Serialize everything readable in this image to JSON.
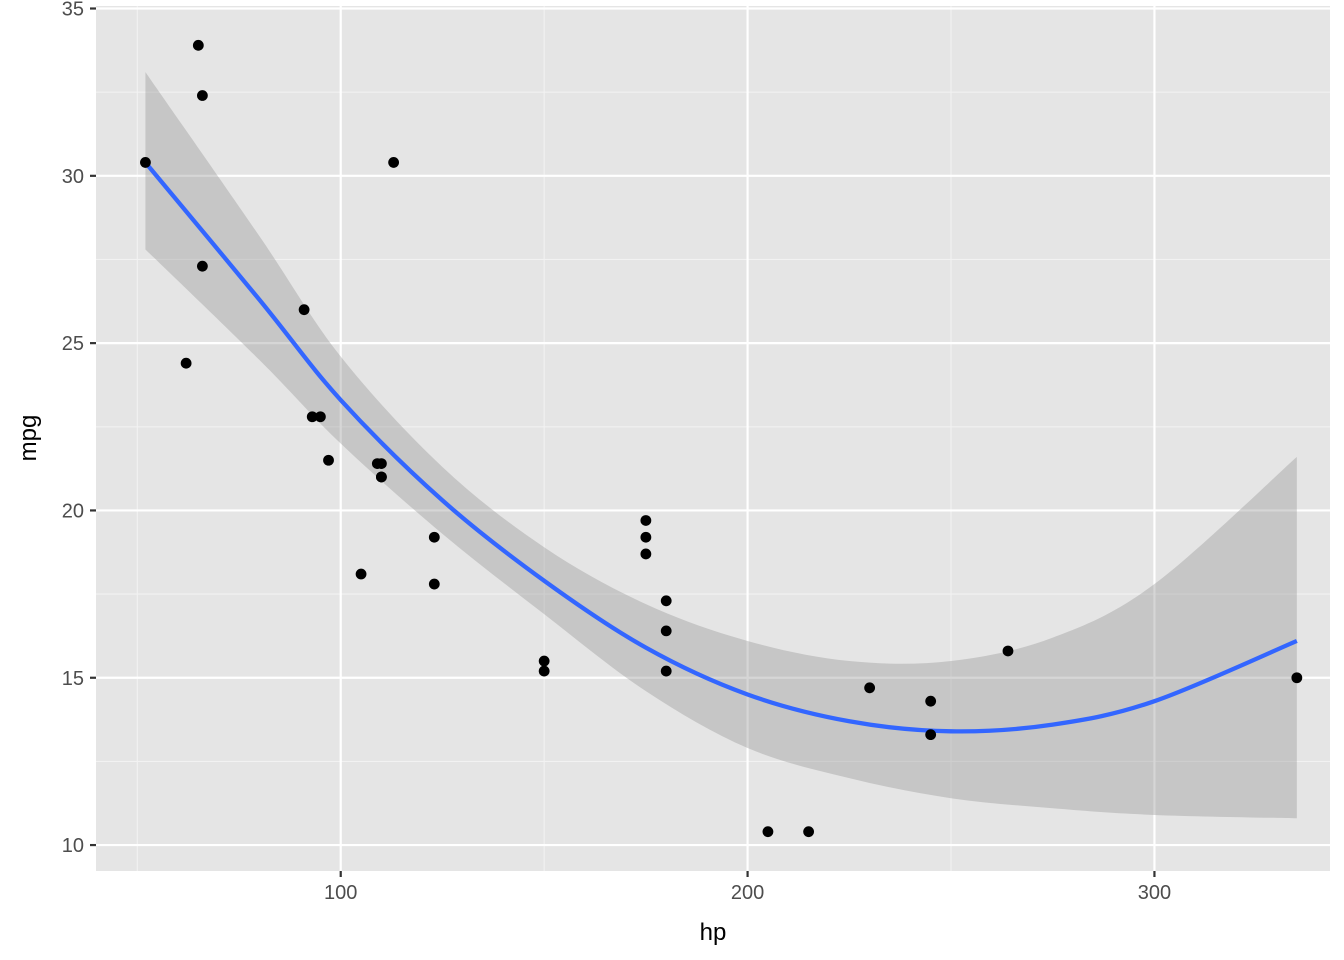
{
  "colors": {
    "panel_background": "#e5e5e5",
    "grid_major": "#ffffff",
    "grid_minor": "#f2f2f2",
    "points": "#000000",
    "fit_line": "#3366ff",
    "confidence_band": "#999999"
  },
  "chart_data": {
    "type": "scatter",
    "xlabel": "hp",
    "ylabel": "mpg",
    "xlim": [
      39.85,
      343.15
    ],
    "ylim": [
      9.225,
      35.075
    ],
    "x_ticks": [
      100,
      200,
      300
    ],
    "y_ticks": [
      10,
      15,
      20,
      25,
      30,
      35
    ],
    "grid": true,
    "legend": "none",
    "points": [
      {
        "x": 110,
        "y": 21.0
      },
      {
        "x": 110,
        "y": 21.0
      },
      {
        "x": 93,
        "y": 22.8
      },
      {
        "x": 110,
        "y": 21.4
      },
      {
        "x": 175,
        "y": 18.7
      },
      {
        "x": 105,
        "y": 18.1
      },
      {
        "x": 245,
        "y": 14.3
      },
      {
        "x": 62,
        "y": 24.4
      },
      {
        "x": 95,
        "y": 22.8
      },
      {
        "x": 123,
        "y": 19.2
      },
      {
        "x": 123,
        "y": 17.8
      },
      {
        "x": 180,
        "y": 16.4
      },
      {
        "x": 180,
        "y": 17.3
      },
      {
        "x": 180,
        "y": 15.2
      },
      {
        "x": 205,
        "y": 10.4
      },
      {
        "x": 215,
        "y": 10.4
      },
      {
        "x": 230,
        "y": 14.7
      },
      {
        "x": 66,
        "y": 32.4
      },
      {
        "x": 52,
        "y": 30.4
      },
      {
        "x": 65,
        "y": 33.9
      },
      {
        "x": 97,
        "y": 21.5
      },
      {
        "x": 150,
        "y": 15.5
      },
      {
        "x": 150,
        "y": 15.2
      },
      {
        "x": 245,
        "y": 13.3
      },
      {
        "x": 175,
        "y": 19.2
      },
      {
        "x": 66,
        "y": 27.3
      },
      {
        "x": 91,
        "y": 26.0
      },
      {
        "x": 113,
        "y": 30.4
      },
      {
        "x": 264,
        "y": 15.8
      },
      {
        "x": 175,
        "y": 19.7
      },
      {
        "x": 335,
        "y": 15.0
      },
      {
        "x": 109,
        "y": 21.4
      }
    ],
    "smooth": {
      "x": [
        52,
        80,
        100,
        125,
        150,
        175,
        200,
        225,
        250,
        275,
        300,
        335
      ],
      "y": [
        30.4,
        26.3,
        23.3,
        20.3,
        17.9,
        15.9,
        14.5,
        13.7,
        13.4,
        13.6,
        14.3,
        16.1
      ],
      "ymin": [
        27.8,
        24.5,
        22.0,
        19.3,
        16.9,
        14.6,
        12.9,
        12.0,
        11.4,
        11.1,
        10.9,
        10.8
      ],
      "ymax": [
        33.1,
        28.2,
        24.6,
        21.3,
        18.9,
        17.2,
        16.1,
        15.5,
        15.5,
        16.2,
        17.8,
        21.6
      ]
    }
  }
}
